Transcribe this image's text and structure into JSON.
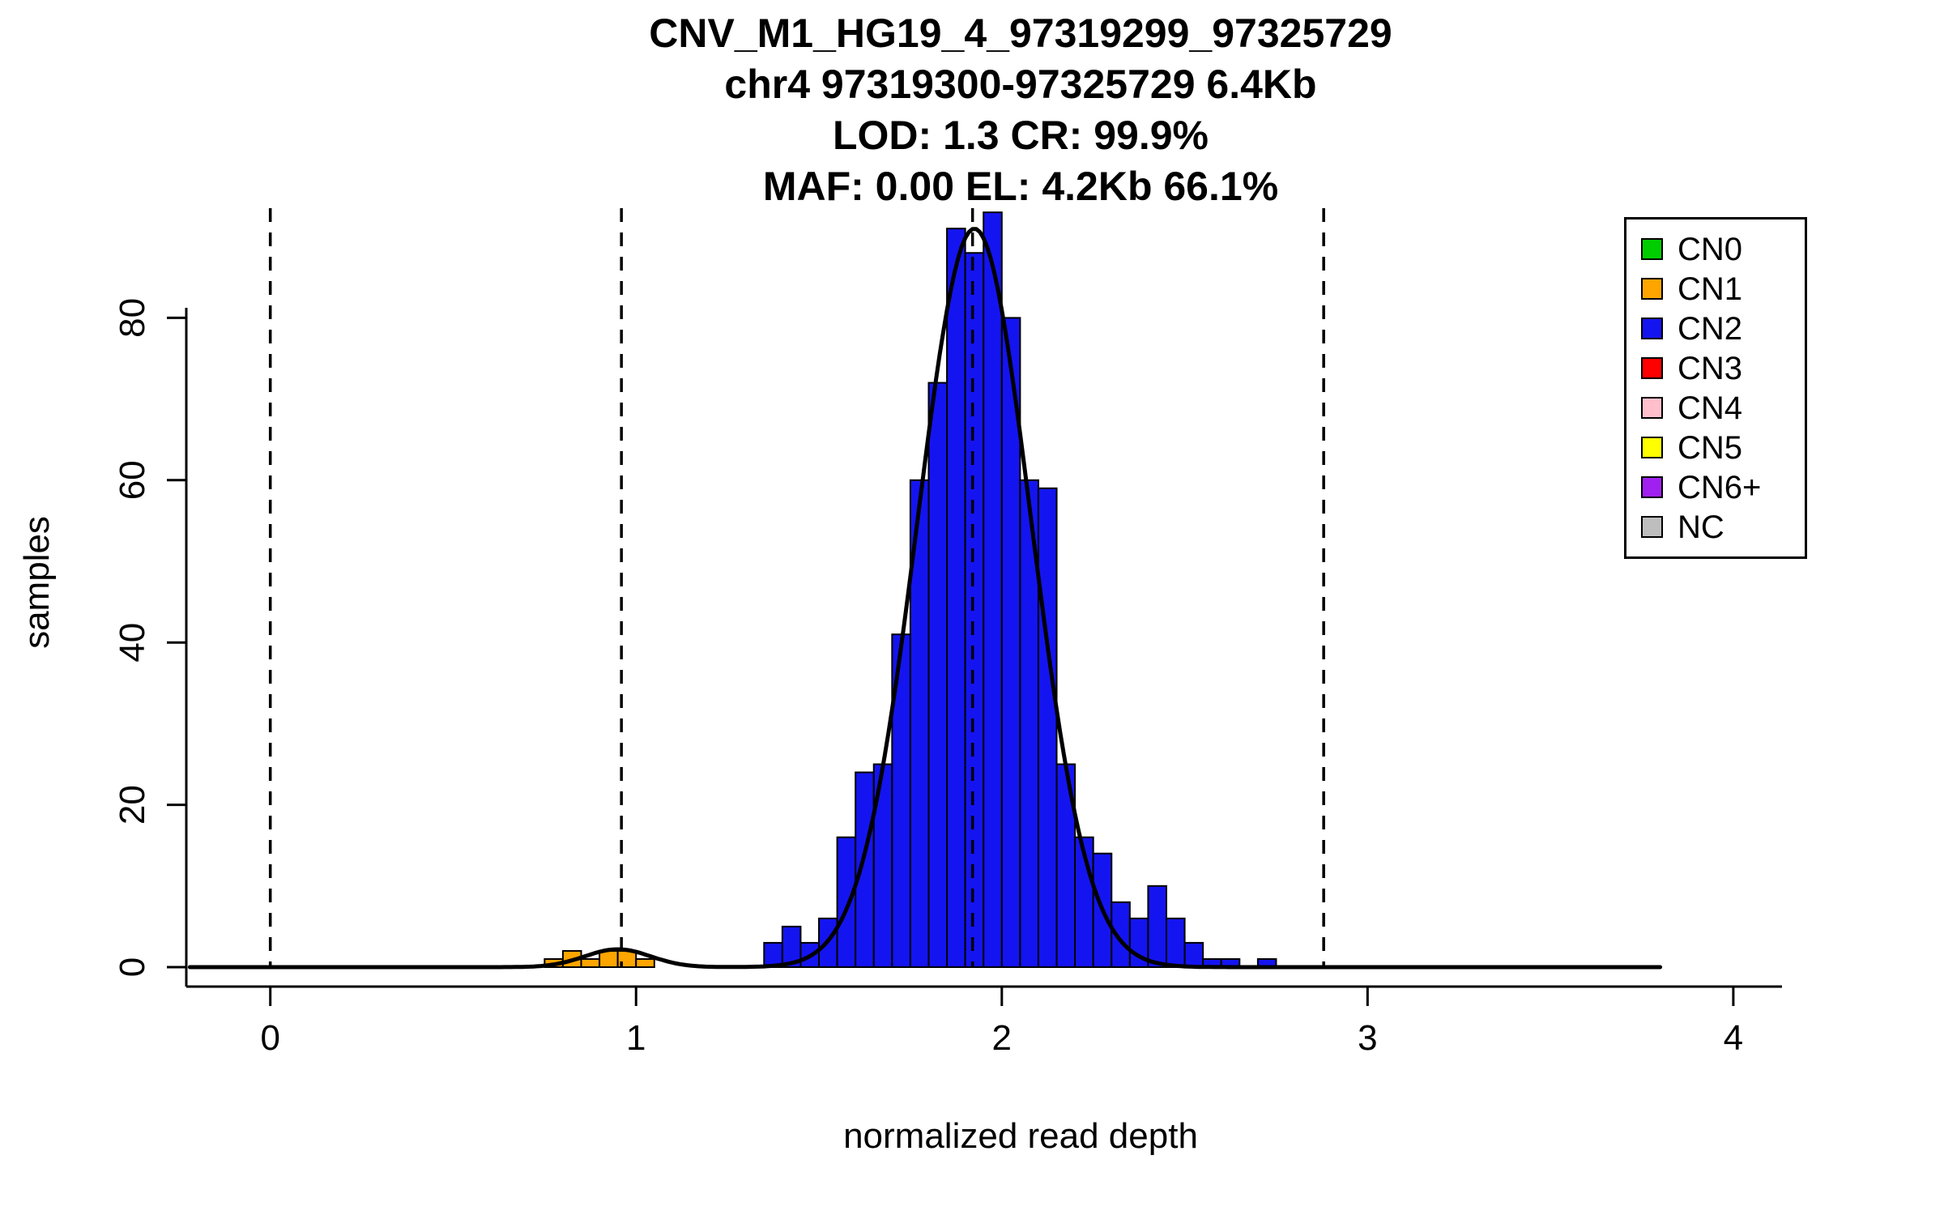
{
  "titles": [
    "CNV_M1_HG19_4_97319299_97325729",
    "chr4 97319300-97325729 6.4Kb",
    "LOD: 1.3 CR: 99.9%",
    "MAF: 0.00 EL: 4.2Kb 66.1%"
  ],
  "legend": {
    "items": [
      {
        "label": "CN0",
        "color": "#00CD00"
      },
      {
        "label": "CN1",
        "color": "#FFA500"
      },
      {
        "label": "CN2",
        "color": "#1414F0"
      },
      {
        "label": "CN3",
        "color": "#FF0000"
      },
      {
        "label": "CN4",
        "color": "#FFC0CB"
      },
      {
        "label": "CN5",
        "color": "#FFFF00"
      },
      {
        "label": "CN6+",
        "color": "#A020F0"
      },
      {
        "label": "NC",
        "color": "#BEBEBE"
      }
    ]
  },
  "chart_data": {
    "type": "bar",
    "title": "CNV_M1_HG19_4_97319299_97325729",
    "subtitle_lines": [
      "chr4 97319300-97325729 6.4Kb",
      "LOD: 1.3 CR: 99.9%",
      "MAF: 0.00 EL: 4.2Kb 66.1%"
    ],
    "xlabel": "normalized read depth",
    "ylabel": "samples",
    "xlim": [
      -0.25,
      4.35
    ],
    "ylim": [
      0,
      93.5
    ],
    "x_ticks": [
      0,
      1,
      2,
      3,
      4
    ],
    "y_ticks": [
      0,
      20,
      40,
      60,
      80
    ],
    "grid": false,
    "legend_position": "top-right",
    "bin_width": 0.05,
    "series": [
      {
        "name": "CN1",
        "color": "#FFA500",
        "bins": [
          [
            0.75,
            1
          ],
          [
            0.8,
            2
          ],
          [
            0.85,
            1
          ],
          [
            0.9,
            2
          ],
          [
            0.95,
            2
          ],
          [
            1.0,
            1
          ]
        ]
      },
      {
        "name": "CN2",
        "color": "#1414F0",
        "bins": [
          [
            1.35,
            3
          ],
          [
            1.4,
            5
          ],
          [
            1.45,
            3
          ],
          [
            1.5,
            6
          ],
          [
            1.55,
            16
          ],
          [
            1.6,
            24
          ],
          [
            1.65,
            25
          ],
          [
            1.7,
            41
          ],
          [
            1.75,
            60
          ],
          [
            1.8,
            72
          ],
          [
            1.85,
            91
          ],
          [
            1.9,
            88
          ],
          [
            1.95,
            93
          ],
          [
            2.0,
            80
          ],
          [
            2.05,
            60
          ],
          [
            2.1,
            59
          ],
          [
            2.15,
            25
          ],
          [
            2.2,
            16
          ],
          [
            2.25,
            14
          ],
          [
            2.3,
            8
          ],
          [
            2.35,
            6
          ],
          [
            2.4,
            10
          ],
          [
            2.45,
            6
          ],
          [
            2.5,
            3
          ],
          [
            2.55,
            1
          ],
          [
            2.6,
            1
          ],
          [
            2.7,
            1
          ]
        ]
      }
    ],
    "cluster_lines_x": [
      0,
      0.96,
      1.92,
      2.88
    ],
    "density_curve": {
      "color": "#000000",
      "x_range": [
        -0.22,
        3.8
      ],
      "components": [
        {
          "mean": 1.925,
          "sd": 0.155,
          "peak": 91
        },
        {
          "mean": 0.95,
          "sd": 0.09,
          "peak": 2.2
        }
      ]
    }
  }
}
